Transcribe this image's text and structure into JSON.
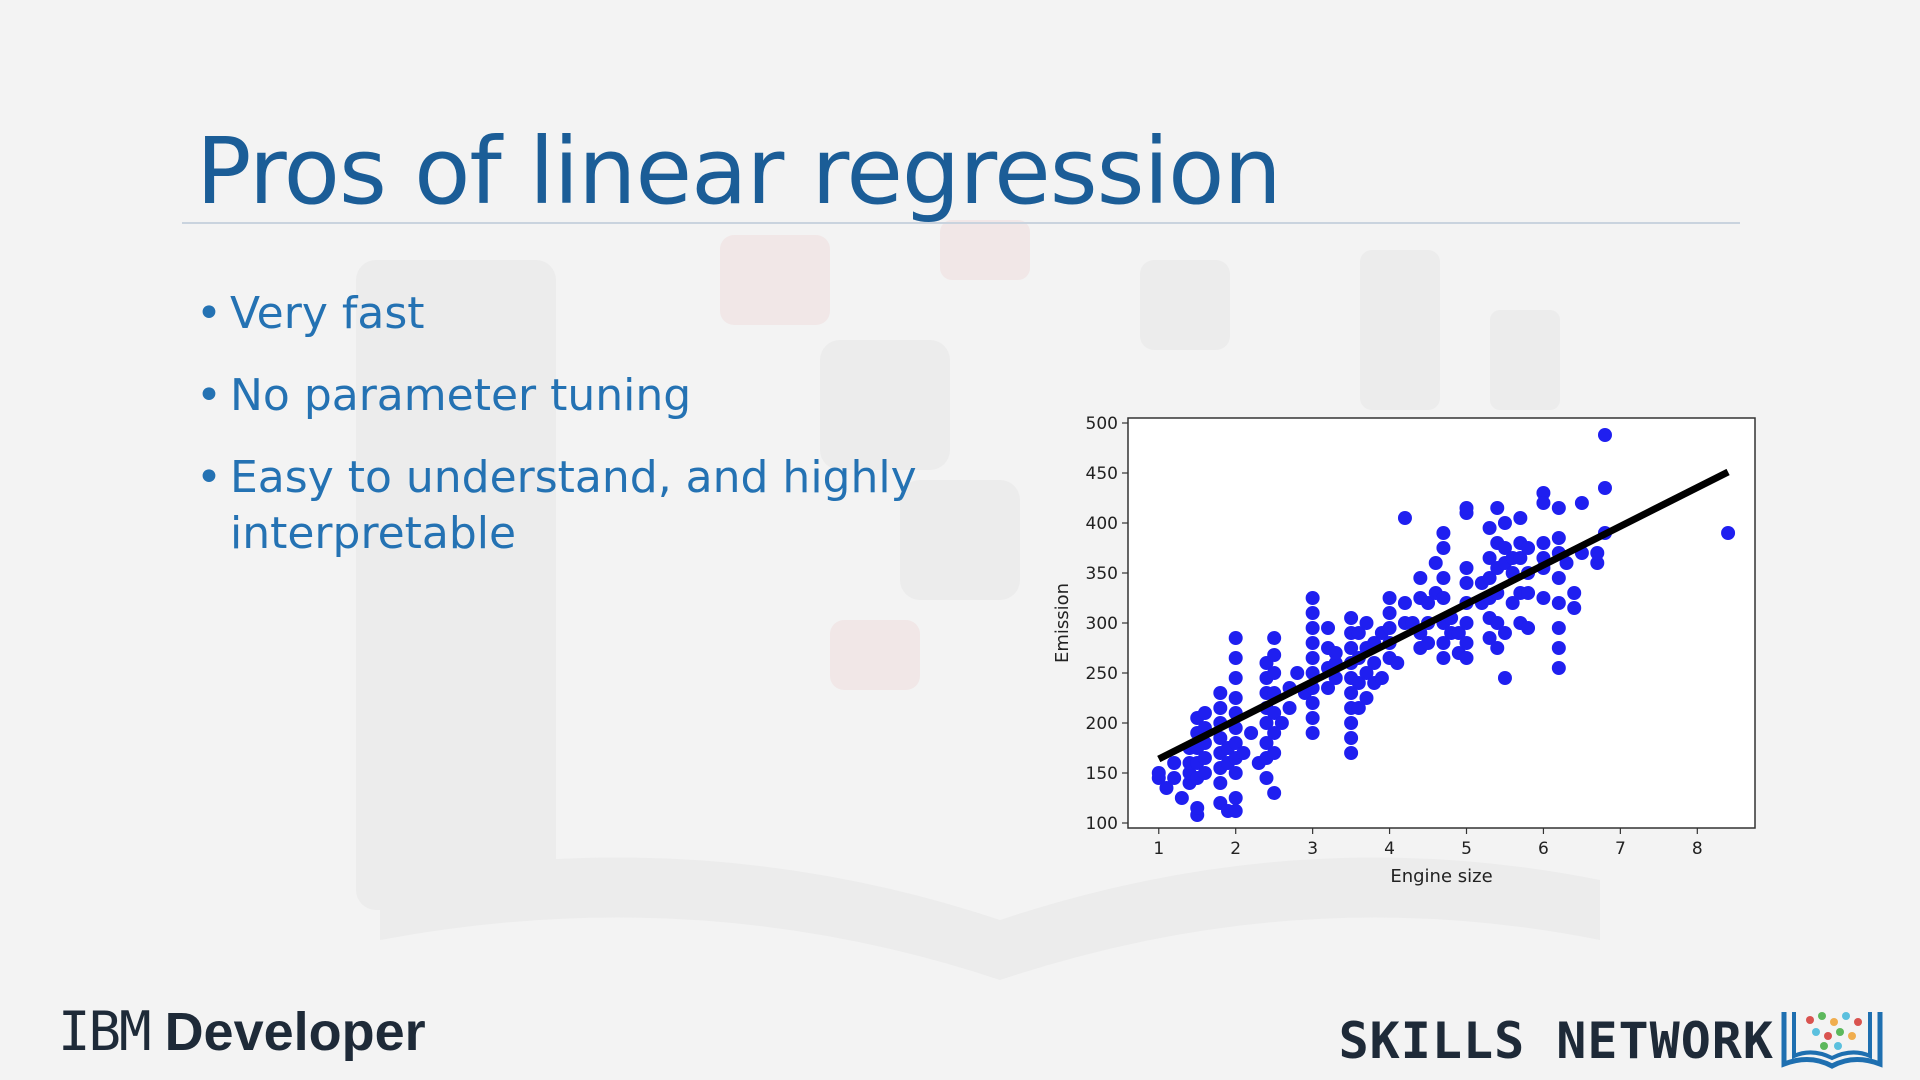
{
  "slide": {
    "title": "Pros of linear regression",
    "bullets": [
      "Very fast",
      "No parameter tuning",
      "Easy to understand, and highly interpretable"
    ]
  },
  "footer": {
    "brand_left_ibm": "IBM",
    "brand_left_developer": "Developer",
    "brand_right": "SKILLS NETWORK",
    "logo_icon": "skills-network-book-icon"
  },
  "colors": {
    "title": "#1b5d97",
    "bullet": "#2472b3",
    "points": "#1f1ff0",
    "fit_line": "#000000"
  },
  "chart_data": {
    "type": "scatter",
    "xlabel": "Engine size",
    "ylabel": "Emission",
    "xlim": [
      0.6,
      8.75
    ],
    "ylim": [
      95,
      505
    ],
    "xticks": [
      1,
      2,
      3,
      4,
      5,
      6,
      7,
      8
    ],
    "yticks": [
      100,
      150,
      200,
      250,
      300,
      350,
      400,
      450,
      500
    ],
    "grid": false,
    "fit_line": {
      "x": [
        1.0,
        8.4
      ],
      "y": [
        164,
        451
      ]
    },
    "points": [
      [
        1.0,
        145
      ],
      [
        1.0,
        150
      ],
      [
        1.1,
        135
      ],
      [
        1.2,
        145
      ],
      [
        1.2,
        160
      ],
      [
        1.3,
        125
      ],
      [
        1.4,
        140
      ],
      [
        1.4,
        150
      ],
      [
        1.4,
        160
      ],
      [
        1.4,
        175
      ],
      [
        1.5,
        108
      ],
      [
        1.5,
        115
      ],
      [
        1.5,
        145
      ],
      [
        1.5,
        160
      ],
      [
        1.5,
        175
      ],
      [
        1.5,
        190
      ],
      [
        1.5,
        205
      ],
      [
        1.6,
        150
      ],
      [
        1.6,
        165
      ],
      [
        1.6,
        180
      ],
      [
        1.6,
        195
      ],
      [
        1.6,
        210
      ],
      [
        1.8,
        140
      ],
      [
        1.8,
        155
      ],
      [
        1.8,
        170
      ],
      [
        1.8,
        185
      ],
      [
        1.8,
        200
      ],
      [
        1.8,
        215
      ],
      [
        1.8,
        230
      ],
      [
        1.8,
        120
      ],
      [
        1.9,
        112
      ],
      [
        1.9,
        160
      ],
      [
        1.9,
        175
      ],
      [
        2.0,
        112
      ],
      [
        2.0,
        125
      ],
      [
        2.0,
        150
      ],
      [
        2.0,
        165
      ],
      [
        2.0,
        180
      ],
      [
        2.0,
        195
      ],
      [
        2.0,
        210
      ],
      [
        2.0,
        225
      ],
      [
        2.0,
        245
      ],
      [
        2.0,
        265
      ],
      [
        2.0,
        285
      ],
      [
        2.1,
        170
      ],
      [
        2.2,
        190
      ],
      [
        2.3,
        160
      ],
      [
        2.4,
        145
      ],
      [
        2.4,
        165
      ],
      [
        2.4,
        180
      ],
      [
        2.4,
        200
      ],
      [
        2.4,
        215
      ],
      [
        2.4,
        230
      ],
      [
        2.4,
        245
      ],
      [
        2.4,
        260
      ],
      [
        2.5,
        130
      ],
      [
        2.5,
        170
      ],
      [
        2.5,
        190
      ],
      [
        2.5,
        210
      ],
      [
        2.5,
        230
      ],
      [
        2.5,
        250
      ],
      [
        2.5,
        268
      ],
      [
        2.5,
        285
      ],
      [
        2.6,
        200
      ],
      [
        2.7,
        215
      ],
      [
        2.7,
        235
      ],
      [
        2.8,
        250
      ],
      [
        2.9,
        230
      ],
      [
        3.0,
        190
      ],
      [
        3.0,
        205
      ],
      [
        3.0,
        220
      ],
      [
        3.0,
        235
      ],
      [
        3.0,
        250
      ],
      [
        3.0,
        265
      ],
      [
        3.0,
        280
      ],
      [
        3.0,
        295
      ],
      [
        3.0,
        310
      ],
      [
        3.0,
        325
      ],
      [
        3.2,
        235
      ],
      [
        3.2,
        255
      ],
      [
        3.2,
        275
      ],
      [
        3.2,
        295
      ],
      [
        3.3,
        245
      ],
      [
        3.3,
        260
      ],
      [
        3.3,
        270
      ],
      [
        3.5,
        170
      ],
      [
        3.5,
        185
      ],
      [
        3.5,
        200
      ],
      [
        3.5,
        215
      ],
      [
        3.5,
        230
      ],
      [
        3.5,
        245
      ],
      [
        3.5,
        260
      ],
      [
        3.5,
        275
      ],
      [
        3.5,
        290
      ],
      [
        3.5,
        305
      ],
      [
        3.6,
        215
      ],
      [
        3.6,
        240
      ],
      [
        3.6,
        265
      ],
      [
        3.6,
        290
      ],
      [
        3.7,
        225
      ],
      [
        3.7,
        250
      ],
      [
        3.7,
        275
      ],
      [
        3.7,
        300
      ],
      [
        3.8,
        240
      ],
      [
        3.8,
        260
      ],
      [
        3.8,
        280
      ],
      [
        3.9,
        245
      ],
      [
        3.9,
        290
      ],
      [
        4.0,
        265
      ],
      [
        4.0,
        280
      ],
      [
        4.0,
        295
      ],
      [
        4.0,
        310
      ],
      [
        4.0,
        325
      ],
      [
        4.1,
        260
      ],
      [
        4.2,
        405
      ],
      [
        4.2,
        300
      ],
      [
        4.2,
        320
      ],
      [
        4.3,
        300
      ],
      [
        4.4,
        275
      ],
      [
        4.4,
        290
      ],
      [
        4.4,
        325
      ],
      [
        4.4,
        345
      ],
      [
        4.5,
        280
      ],
      [
        4.5,
        300
      ],
      [
        4.5,
        320
      ],
      [
        4.6,
        330
      ],
      [
        4.6,
        360
      ],
      [
        4.7,
        265
      ],
      [
        4.7,
        280
      ],
      [
        4.7,
        300
      ],
      [
        4.7,
        325
      ],
      [
        4.7,
        345
      ],
      [
        4.7,
        375
      ],
      [
        4.7,
        390
      ],
      [
        4.8,
        290
      ],
      [
        4.8,
        305
      ],
      [
        4.9,
        270
      ],
      [
        4.9,
        290
      ],
      [
        5.0,
        265
      ],
      [
        5.0,
        280
      ],
      [
        5.0,
        300
      ],
      [
        5.0,
        320
      ],
      [
        5.0,
        340
      ],
      [
        5.0,
        355
      ],
      [
        5.0,
        410
      ],
      [
        5.0,
        415
      ],
      [
        5.2,
        320
      ],
      [
        5.2,
        340
      ],
      [
        5.3,
        285
      ],
      [
        5.3,
        305
      ],
      [
        5.3,
        325
      ],
      [
        5.3,
        345
      ],
      [
        5.3,
        365
      ],
      [
        5.3,
        395
      ],
      [
        5.4,
        275
      ],
      [
        5.4,
        300
      ],
      [
        5.4,
        330
      ],
      [
        5.4,
        355
      ],
      [
        5.4,
        380
      ],
      [
        5.4,
        415
      ],
      [
        5.5,
        245
      ],
      [
        5.5,
        290
      ],
      [
        5.5,
        360
      ],
      [
        5.5,
        375
      ],
      [
        5.5,
        400
      ],
      [
        5.6,
        320
      ],
      [
        5.6,
        350
      ],
      [
        5.6,
        365
      ],
      [
        5.7,
        300
      ],
      [
        5.7,
        330
      ],
      [
        5.7,
        365
      ],
      [
        5.7,
        380
      ],
      [
        5.7,
        405
      ],
      [
        5.8,
        295
      ],
      [
        5.8,
        330
      ],
      [
        5.8,
        350
      ],
      [
        5.8,
        375
      ],
      [
        6.0,
        355
      ],
      [
        6.0,
        365
      ],
      [
        6.0,
        380
      ],
      [
        6.0,
        430
      ],
      [
        6.0,
        420
      ],
      [
        6.0,
        325
      ],
      [
        6.2,
        255
      ],
      [
        6.2,
        275
      ],
      [
        6.2,
        295
      ],
      [
        6.2,
        320
      ],
      [
        6.2,
        345
      ],
      [
        6.2,
        370
      ],
      [
        6.2,
        385
      ],
      [
        6.2,
        415
      ],
      [
        6.3,
        360
      ],
      [
        6.4,
        315
      ],
      [
        6.4,
        330
      ],
      [
        6.5,
        370
      ],
      [
        6.5,
        420
      ],
      [
        6.7,
        360
      ],
      [
        6.7,
        370
      ],
      [
        6.8,
        390
      ],
      [
        6.8,
        435
      ],
      [
        6.8,
        488
      ],
      [
        8.4,
        390
      ]
    ]
  }
}
